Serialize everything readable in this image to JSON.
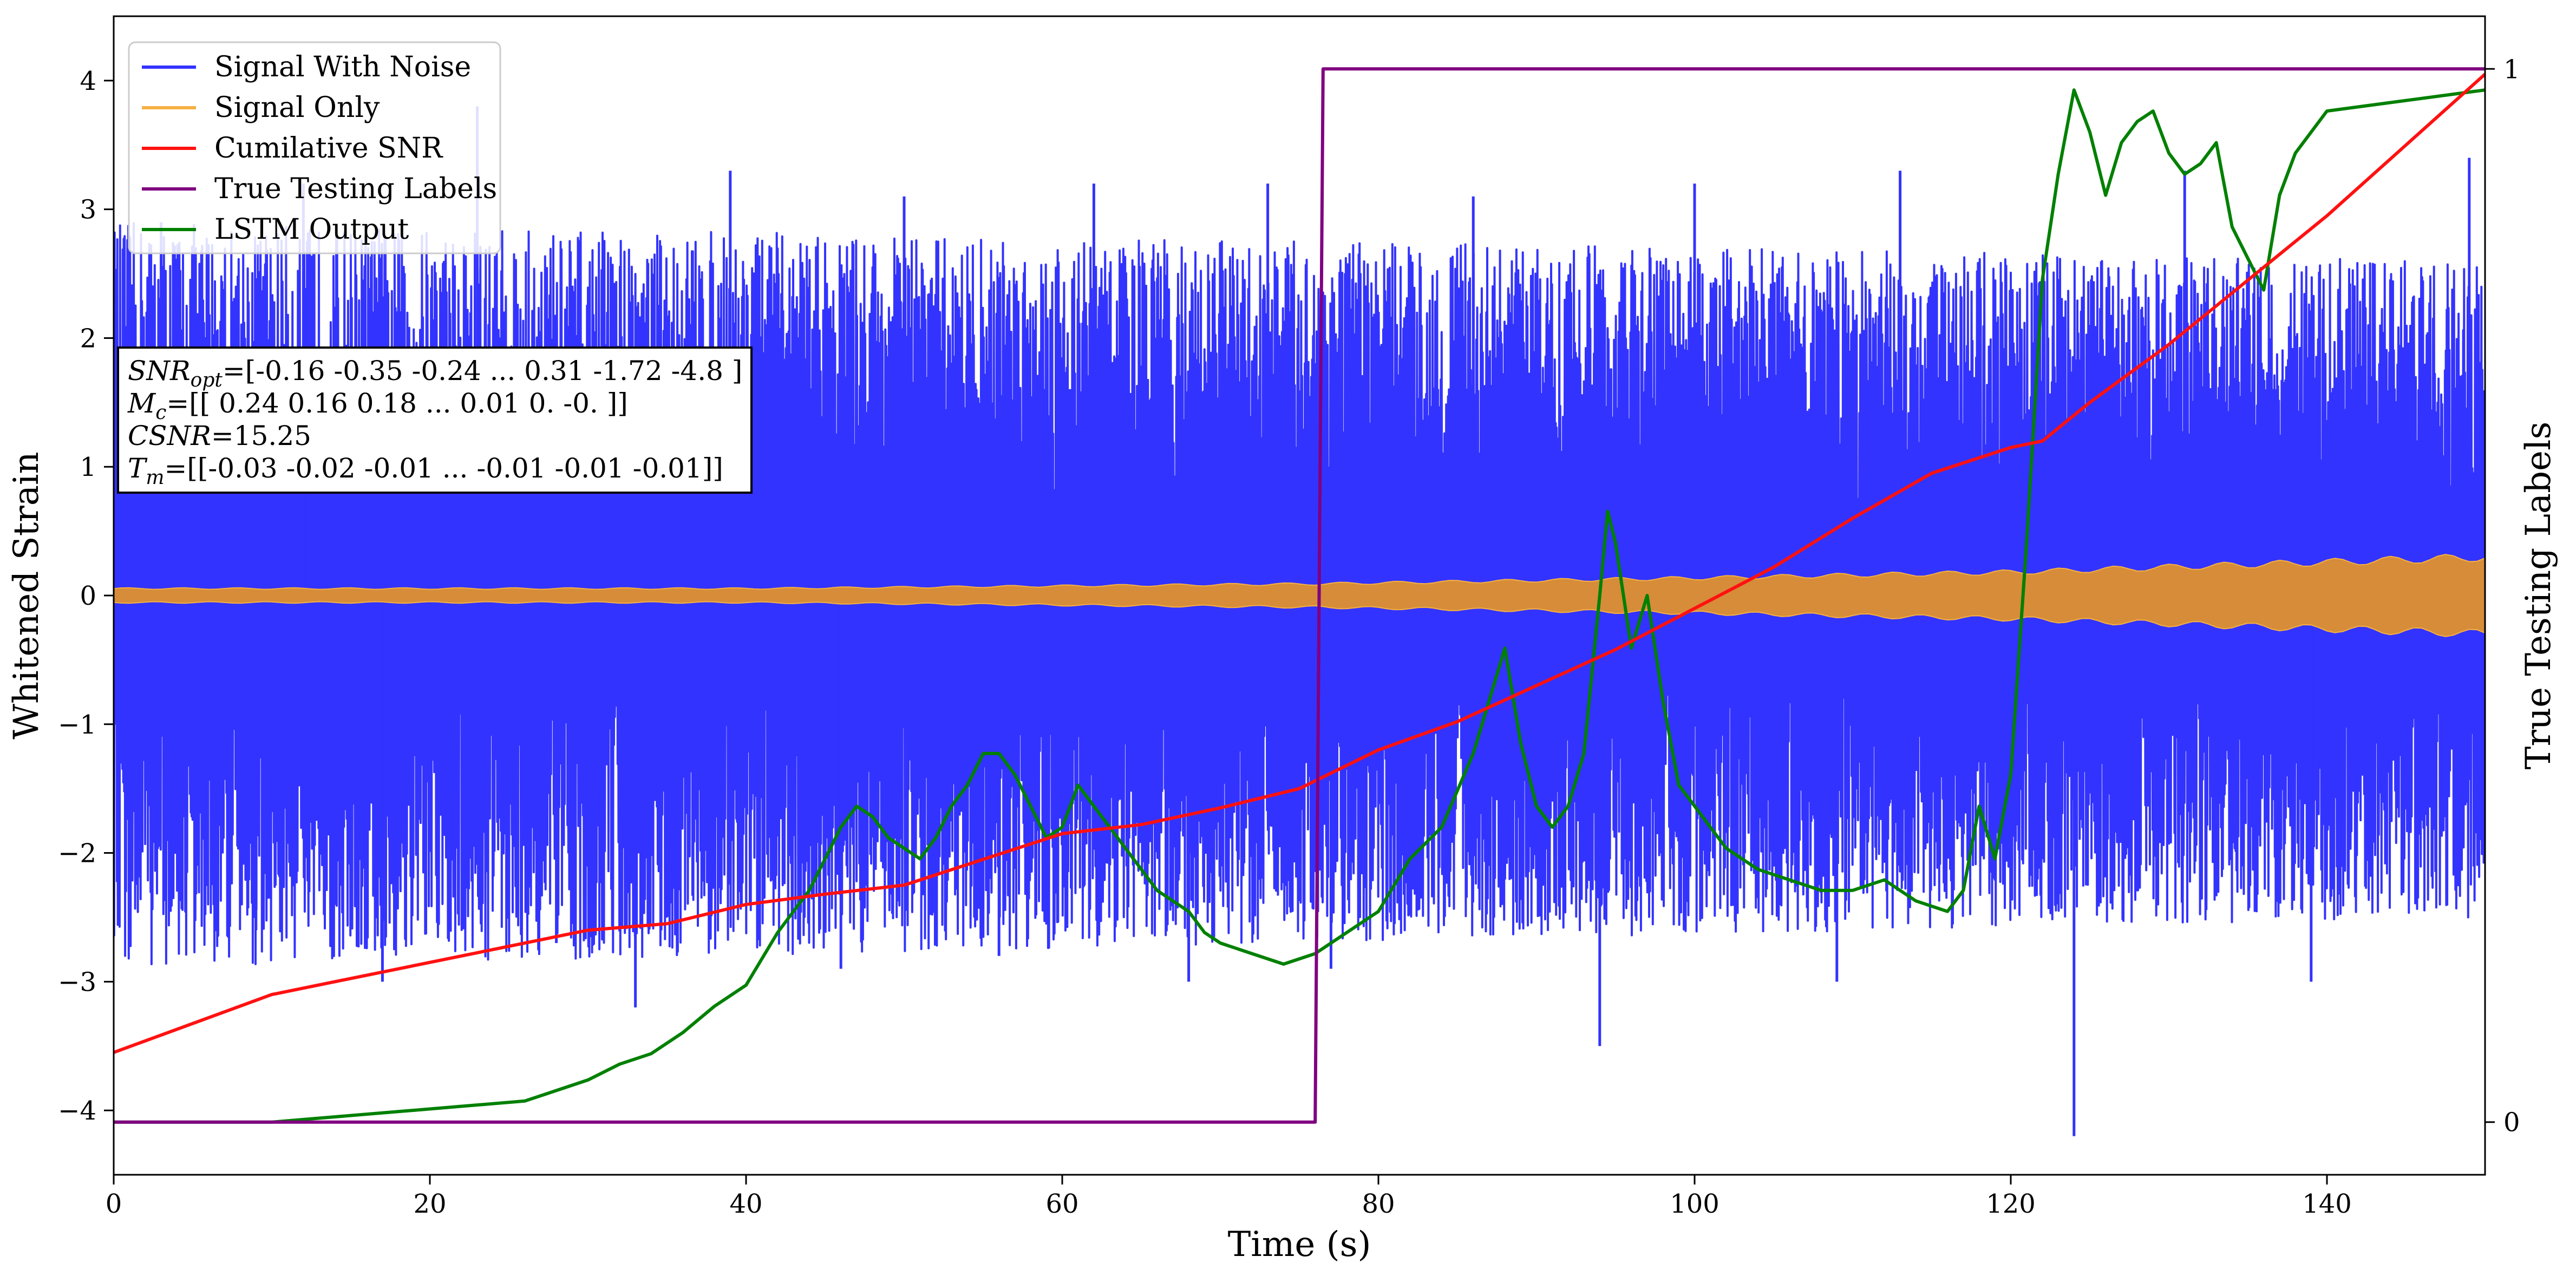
{
  "chart_data": {
    "type": "line",
    "xlabel": "Time (s)",
    "ylabel": "Whitened Strain",
    "y2label": "True Testing Labels",
    "xlim": [
      0,
      150
    ],
    "ylim": [
      -4.5,
      4.5
    ],
    "y2lim": [
      -0.05,
      1.05
    ],
    "x_ticks": [
      0,
      20,
      40,
      60,
      80,
      100,
      120,
      140
    ],
    "y_ticks": [
      -4,
      -3,
      -2,
      -1,
      0,
      1,
      2,
      3,
      4
    ],
    "y2_ticks": [
      0,
      1
    ],
    "legend_placement": "upper-left",
    "grid": false,
    "annotation": {
      "lines": [
        {
          "sym": "SNR",
          "sub": "opt",
          "text": "=[-0.16 -0.35 -0.24 ...  0.31 -1.72 -4.8 ]"
        },
        {
          "sym": "M",
          "sub": "c",
          "text": "=[[ 0.24  0.16  0.18 ...  0.01  0.   -0.  ]]"
        },
        {
          "sym": "CSNR",
          "sub": "",
          "text": "=15.25"
        },
        {
          "sym": "T",
          "sub": "m",
          "text": "=[[-0.03 -0.02 -0.01 ... -0.01 -0.01 -0.01]]"
        }
      ]
    },
    "series": [
      {
        "name": "Signal With Noise",
        "color": "#3333ff",
        "axis": "left",
        "style": "noise-band",
        "envelope_x": [
          0,
          150
        ],
        "envelope_min": [
          -2.9,
          -2.5
        ],
        "envelope_max": [
          2.9,
          2.6
        ],
        "spike_x": [
          3,
          9,
          12,
          17,
          23,
          28,
          33,
          39,
          46,
          50,
          56,
          62,
          68,
          73,
          77,
          86,
          94,
          100,
          109,
          113,
          124,
          131,
          139,
          149
        ],
        "spike_y": [
          2.9,
          -2.6,
          3.2,
          -3.0,
          3.8,
          -2.7,
          -3.2,
          3.3,
          -2.9,
          3.1,
          -2.8,
          3.2,
          -3.0,
          3.2,
          -2.9,
          3.1,
          -3.5,
          3.2,
          -3.0,
          3.3,
          -4.2,
          3.3,
          -3.0,
          3.4
        ]
      },
      {
        "name": "Signal Only",
        "color": "#f5b042",
        "axis": "left",
        "style": "amplitude-band",
        "x": [
          0,
          40,
          76,
          100,
          120,
          150
        ],
        "amplitude": [
          0.06,
          0.06,
          0.1,
          0.15,
          0.2,
          0.33
        ]
      },
      {
        "name": "Cumilative SNR",
        "color": "#ff1111",
        "axis": "left",
        "x": [
          0,
          10,
          20,
          30,
          35,
          40,
          45,
          50,
          55,
          60,
          65,
          70,
          75,
          80,
          85,
          90,
          95,
          100,
          105,
          110,
          115,
          120,
          122,
          125,
          130,
          135,
          140,
          145,
          150
        ],
        "y": [
          -3.55,
          -3.1,
          -2.85,
          -2.6,
          -2.55,
          -2.4,
          -2.32,
          -2.25,
          -2.05,
          -1.85,
          -1.78,
          -1.65,
          -1.5,
          -1.2,
          -0.98,
          -0.7,
          -0.42,
          -0.1,
          0.22,
          0.6,
          0.95,
          1.15,
          1.2,
          1.5,
          1.95,
          2.45,
          2.95,
          3.5,
          4.05
        ]
      },
      {
        "name": "True Testing Labels",
        "color": "#800080",
        "axis": "right",
        "x": [
          0,
          76,
          76.5,
          150
        ],
        "y": [
          0,
          0,
          1,
          1
        ]
      },
      {
        "name": "LSTM Output",
        "color": "#008000",
        "axis": "right",
        "x": [
          0,
          10,
          14,
          18,
          22,
          26,
          28,
          30,
          32,
          34,
          36,
          38,
          40,
          42,
          43,
          44,
          45,
          46,
          47,
          48,
          49,
          50,
          51,
          52,
          53,
          54,
          55,
          56,
          57,
          58,
          59,
          60,
          61,
          62,
          63,
          64,
          65,
          66,
          67,
          68,
          69,
          70,
          72,
          74,
          76,
          78,
          80,
          82,
          84,
          86,
          87,
          88,
          89,
          90,
          91,
          92,
          93,
          94,
          94.5,
          95,
          96,
          97,
          98,
          99,
          100,
          102,
          104,
          106,
          108,
          110,
          112,
          114,
          116,
          117,
          118,
          119,
          120,
          121,
          122,
          123,
          124,
          125,
          126,
          127,
          128,
          129,
          130,
          131,
          132,
          133,
          134,
          135,
          136,
          137,
          138,
          140,
          145,
          150
        ],
        "y": [
          0,
          0,
          0.005,
          0.01,
          0.015,
          0.02,
          0.03,
          0.04,
          0.055,
          0.065,
          0.085,
          0.11,
          0.13,
          0.18,
          0.2,
          0.22,
          0.25,
          0.28,
          0.3,
          0.29,
          0.27,
          0.26,
          0.25,
          0.27,
          0.3,
          0.32,
          0.35,
          0.35,
          0.33,
          0.3,
          0.27,
          0.28,
          0.32,
          0.3,
          0.28,
          0.26,
          0.24,
          0.22,
          0.21,
          0.2,
          0.18,
          0.17,
          0.16,
          0.15,
          0.16,
          0.18,
          0.2,
          0.25,
          0.28,
          0.35,
          0.4,
          0.45,
          0.36,
          0.3,
          0.28,
          0.3,
          0.35,
          0.5,
          0.58,
          0.55,
          0.45,
          0.5,
          0.4,
          0.32,
          0.3,
          0.26,
          0.24,
          0.23,
          0.22,
          0.22,
          0.23,
          0.21,
          0.2,
          0.22,
          0.3,
          0.25,
          0.33,
          0.55,
          0.8,
          0.9,
          0.98,
          0.94,
          0.88,
          0.93,
          0.95,
          0.96,
          0.92,
          0.9,
          0.91,
          0.93,
          0.85,
          0.82,
          0.79,
          0.88,
          0.92,
          0.96,
          0.97,
          0.98
        ]
      }
    ]
  }
}
